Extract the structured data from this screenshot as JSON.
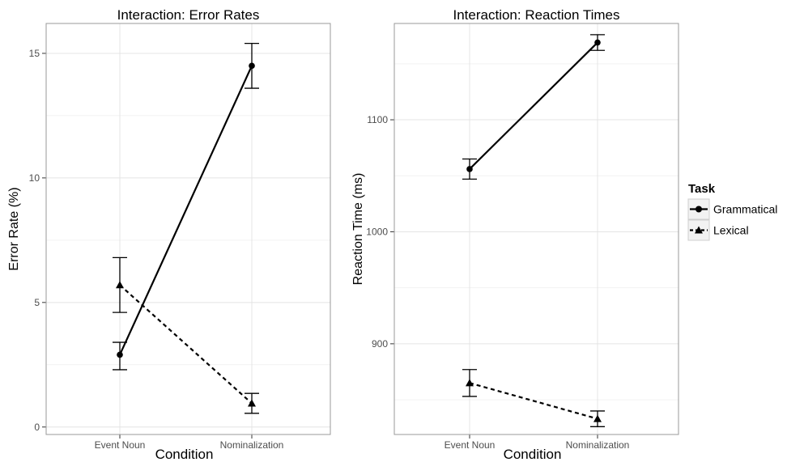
{
  "legend": {
    "title": "Task",
    "items": [
      {
        "label": "Grammatical",
        "marker": "circle",
        "line": "solid"
      },
      {
        "label": "Lexical",
        "marker": "triangle",
        "line": "dashed"
      }
    ]
  },
  "chart_data": [
    {
      "type": "line",
      "title": "Interaction: Error Rates",
      "xlabel": "Condition",
      "ylabel": "Error Rate (%)",
      "categories": [
        "Event Noun",
        "Nominalization"
      ],
      "yticks": [
        0,
        5,
        10,
        15
      ],
      "ylim": [
        -0.3,
        16.2
      ],
      "grid": true,
      "series": [
        {
          "name": "Grammatical",
          "values": [
            2.9,
            14.5
          ],
          "error_low": [
            2.3,
            13.6
          ],
          "error_high": [
            3.4,
            15.4
          ]
        },
        {
          "name": "Lexical",
          "values": [
            5.7,
            0.95
          ],
          "error_low": [
            4.6,
            0.55
          ],
          "error_high": [
            6.8,
            1.35
          ]
        }
      ]
    },
    {
      "type": "line",
      "title": "Interaction: Reaction Times",
      "xlabel": "Condition",
      "ylabel": "Reaction Time (ms)",
      "categories": [
        "Event Noun",
        "Nominalization"
      ],
      "yticks": [
        900,
        1000,
        1100
      ],
      "ylim": [
        819,
        1186
      ],
      "grid": true,
      "series": [
        {
          "name": "Grammatical",
          "values": [
            1056,
            1169
          ],
          "error_low": [
            1047,
            1162
          ],
          "error_high": [
            1065,
            1176
          ]
        },
        {
          "name": "Lexical",
          "values": [
            865,
            833
          ],
          "error_low": [
            853,
            826
          ],
          "error_high": [
            877,
            840
          ]
        }
      ]
    }
  ]
}
